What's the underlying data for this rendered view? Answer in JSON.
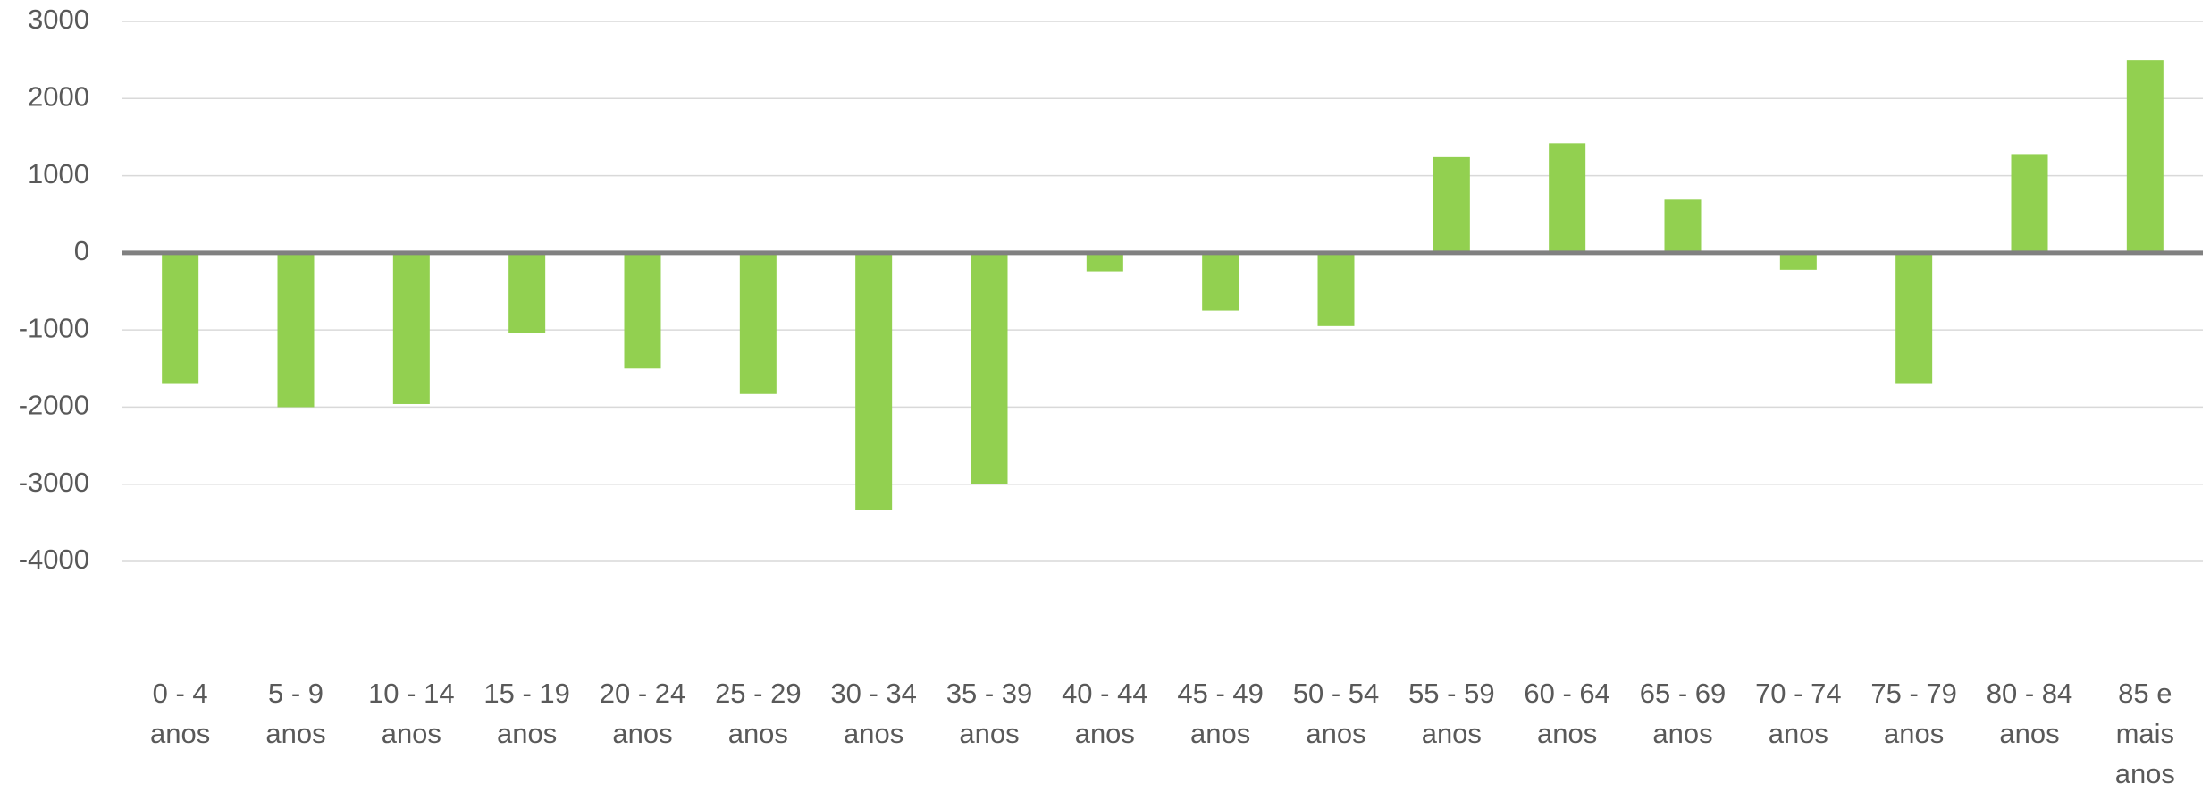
{
  "chart_data": {
    "type": "bar",
    "categories": [
      [
        "0 - 4",
        "anos"
      ],
      [
        "5 - 9",
        "anos"
      ],
      [
        "10 - 14",
        "anos"
      ],
      [
        "15 - 19",
        "anos"
      ],
      [
        "20 - 24",
        "anos"
      ],
      [
        "25 - 29",
        "anos"
      ],
      [
        "30 - 34",
        "anos"
      ],
      [
        "35 - 39",
        "anos"
      ],
      [
        "40 - 44",
        "anos"
      ],
      [
        "45 - 49",
        "anos"
      ],
      [
        "50 - 54",
        "anos"
      ],
      [
        "55 - 59",
        "anos"
      ],
      [
        "60 - 64",
        "anos"
      ],
      [
        "65 - 69",
        "anos"
      ],
      [
        "70 - 74",
        "anos"
      ],
      [
        "75 - 79",
        "anos"
      ],
      [
        "80 - 84",
        "anos"
      ],
      [
        "85 e",
        "mais",
        "anos"
      ]
    ],
    "values": [
      -1700,
      -2000,
      -1960,
      -1040,
      -1500,
      -1830,
      -3330,
      -3000,
      -240,
      -750,
      -950,
      1240,
      1420,
      690,
      -220,
      -1700,
      1280,
      2500
    ],
    "color": "#92d050",
    "ylim": [
      -4000,
      3000
    ],
    "yticks": [
      -4000,
      -3000,
      -2000,
      -1000,
      0,
      1000,
      2000,
      3000
    ],
    "grid": true
  }
}
